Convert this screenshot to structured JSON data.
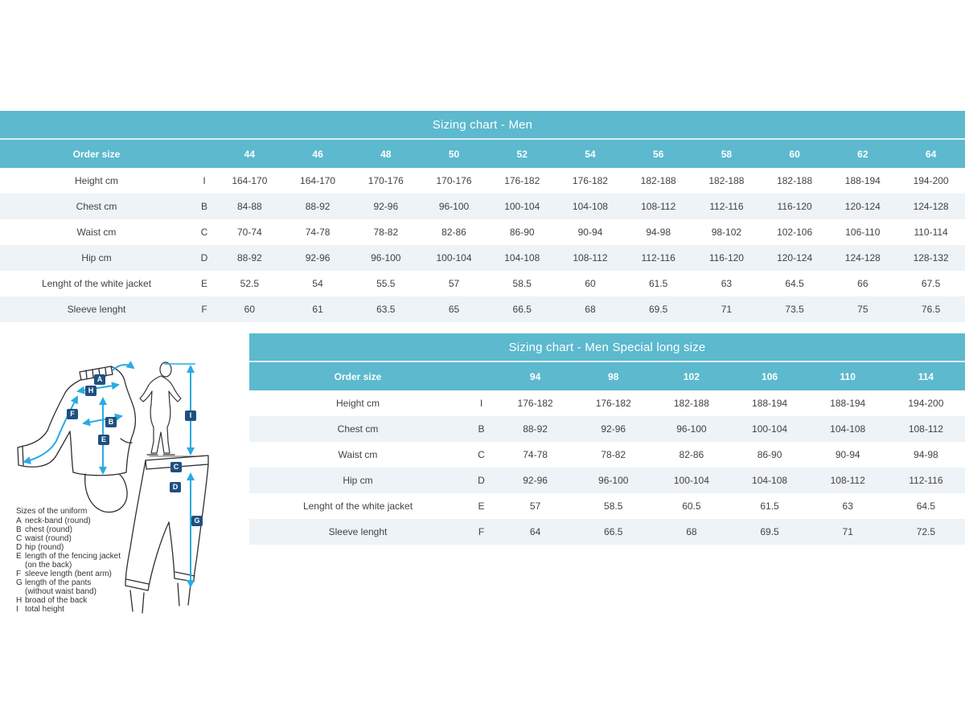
{
  "colors": {
    "header_teal": "#5cb9ce",
    "row_stripe": "#edf3f6",
    "marker_navy": "#1f5080",
    "arrow_cyan": "#29abe2",
    "body_text": "#424242"
  },
  "tables": [
    {
      "title": "Sizing chart - Men",
      "order_size_label": "Order size",
      "sizes": [
        "44",
        "46",
        "48",
        "50",
        "52",
        "54",
        "56",
        "58",
        "60",
        "62",
        "64"
      ],
      "rows": [
        {
          "label": "Height cm",
          "letter": "I",
          "values": [
            "164-170",
            "164-170",
            "170-176",
            "170-176",
            "176-182",
            "176-182",
            "182-188",
            "182-188",
            "182-188",
            "188-194",
            "194-200"
          ]
        },
        {
          "label": "Chest cm",
          "letter": "B",
          "values": [
            "84-88",
            "88-92",
            "92-96",
            "96-100",
            "100-104",
            "104-108",
            "108-112",
            "112-116",
            "116-120",
            "120-124",
            "124-128"
          ]
        },
        {
          "label": "Waist cm",
          "letter": "C",
          "values": [
            "70-74",
            "74-78",
            "78-82",
            "82-86",
            "86-90",
            "90-94",
            "94-98",
            "98-102",
            "102-106",
            "106-110",
            "110-114"
          ]
        },
        {
          "label": "Hip cm",
          "letter": "D",
          "values": [
            "88-92",
            "92-96",
            "96-100",
            "100-104",
            "104-108",
            "108-112",
            "112-116",
            "116-120",
            "120-124",
            "124-128",
            "128-132"
          ]
        },
        {
          "label": "Lenght of the white jacket",
          "letter": "E",
          "values": [
            "52.5",
            "54",
            "55.5",
            "57",
            "58.5",
            "60",
            "61.5",
            "63",
            "64.5",
            "66",
            "67.5"
          ]
        },
        {
          "label": "Sleeve lenght",
          "letter": "F",
          "values": [
            "60",
            "61",
            "63.5",
            "65",
            "66.5",
            "68",
            "69.5",
            "71",
            "73.5",
            "75",
            "76.5"
          ]
        }
      ]
    },
    {
      "title": "Sizing chart - Men Special long size",
      "order_size_label": "Order size",
      "sizes": [
        "94",
        "98",
        "102",
        "106",
        "110",
        "114"
      ],
      "rows": [
        {
          "label": "Height cm",
          "letter": "I",
          "values": [
            "176-182",
            "176-182",
            "182-188",
            "188-194",
            "188-194",
            "194-200"
          ]
        },
        {
          "label": "Chest cm",
          "letter": "B",
          "values": [
            "88-92",
            "92-96",
            "96-100",
            "100-104",
            "104-108",
            "108-112"
          ]
        },
        {
          "label": "Waist cm",
          "letter": "C",
          "values": [
            "74-78",
            "78-82",
            "82-86",
            "86-90",
            "90-94",
            "94-98"
          ]
        },
        {
          "label": "Hip cm",
          "letter": "D",
          "values": [
            "92-96",
            "96-100",
            "100-104",
            "104-108",
            "108-112",
            "112-116"
          ]
        },
        {
          "label": "Lenght of the white jacket",
          "letter": "E",
          "values": [
            "57",
            "58.5",
            "60.5",
            "61.5",
            "63",
            "64.5"
          ]
        },
        {
          "label": "Sleeve lenght",
          "letter": "F",
          "values": [
            "64",
            "66.5",
            "68",
            "69.5",
            "71",
            "72.5"
          ]
        }
      ]
    }
  ],
  "diagram": {
    "legend_title": "Sizes of the uniform",
    "legend_items": [
      {
        "letter": "A",
        "text": "neck-band (round)"
      },
      {
        "letter": "B",
        "text": "chest (round)"
      },
      {
        "letter": "C",
        "text": "waist (round)"
      },
      {
        "letter": "D",
        "text": "hip (round)"
      },
      {
        "letter": "E",
        "text": "length of the fencing jacket",
        "text2": "(on the back)"
      },
      {
        "letter": "F",
        "text": "sleeve length (bent arm)"
      },
      {
        "letter": "G",
        "text": "length of the pants",
        "text2": "(without waist band)"
      },
      {
        "letter": "H",
        "text": "broad of the back"
      },
      {
        "letter": "I",
        "text": "total height"
      }
    ],
    "markers": [
      {
        "letter": "A"
      },
      {
        "letter": "H"
      },
      {
        "letter": "F"
      },
      {
        "letter": "B"
      },
      {
        "letter": "E"
      },
      {
        "letter": "I"
      },
      {
        "letter": "C"
      },
      {
        "letter": "D"
      },
      {
        "letter": "G"
      }
    ]
  }
}
